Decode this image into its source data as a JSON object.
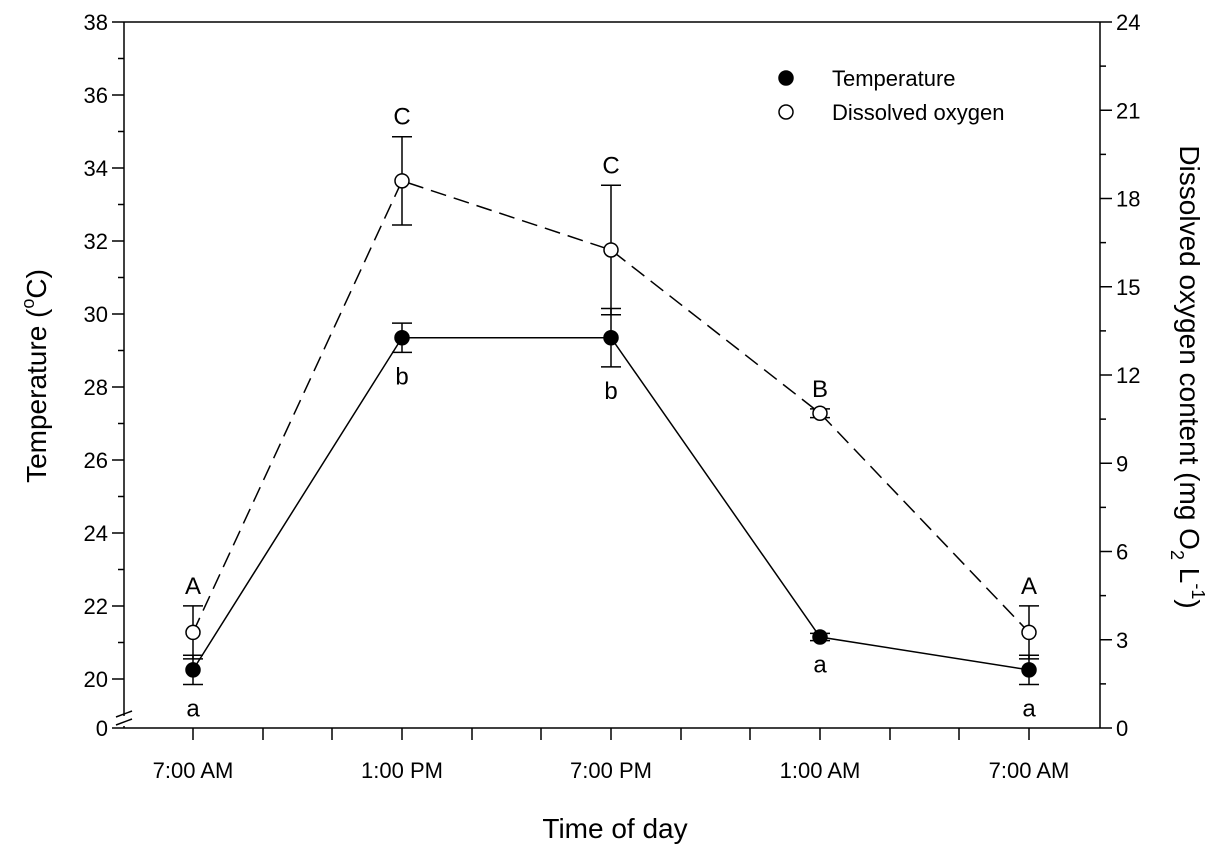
{
  "chart_data": {
    "type": "line",
    "categories": [
      "7:00 AM",
      "1:00 PM",
      "7:00 PM",
      "1:00 AM",
      "7:00 AM"
    ],
    "xlabel": "Time of day",
    "ylabel_left": {
      "pre": "Temperature (",
      "sup": "o",
      "post": "C)"
    },
    "ylabel_right": {
      "pre": "Dissolved oxygen content (mg O",
      "sub": "2",
      "mid": " L",
      "sup": "-1",
      "post": ")"
    },
    "left_axis": {
      "break_label": "0",
      "range": [
        19,
        38
      ],
      "ticks": [
        20,
        22,
        24,
        26,
        28,
        30,
        32,
        34,
        36,
        38
      ],
      "tick_labels": [
        "20",
        "22",
        "24",
        "26",
        "28",
        "30",
        "32",
        "34",
        "36",
        "38"
      ],
      "axis_break": true
    },
    "right_axis": {
      "range": [
        0,
        24
      ],
      "ticks": [
        0,
        3,
        6,
        9,
        12,
        15,
        18,
        21,
        24
      ],
      "tick_labels": [
        "0",
        "3",
        "6",
        "9",
        "12",
        "15",
        "18",
        "21",
        "24"
      ]
    },
    "legend": {
      "placement": "top-right",
      "entries": [
        "Temperature",
        "Dissolved oxygen"
      ]
    },
    "series": [
      {
        "name": "Temperature",
        "axis": "left",
        "marker": "filled-circle",
        "line": "solid",
        "values": [
          20.25,
          29.35,
          29.35,
          21.15,
          20.25
        ],
        "errors": [
          0.4,
          0.4,
          0.8,
          0.1,
          0.4
        ],
        "sig_labels": [
          "a",
          "b",
          "b",
          "a",
          "a"
        ],
        "label_position": "below"
      },
      {
        "name": "Dissolved oxygen",
        "axis": "right",
        "marker": "open-circle",
        "line": "dashed",
        "values": [
          3.25,
          18.6,
          16.25,
          10.7,
          3.25
        ],
        "errors": [
          0.9,
          1.5,
          2.2,
          0.15,
          0.9
        ],
        "sig_labels": [
          "A",
          "C",
          "C",
          "B",
          "A"
        ],
        "label_position": "above"
      }
    ]
  }
}
